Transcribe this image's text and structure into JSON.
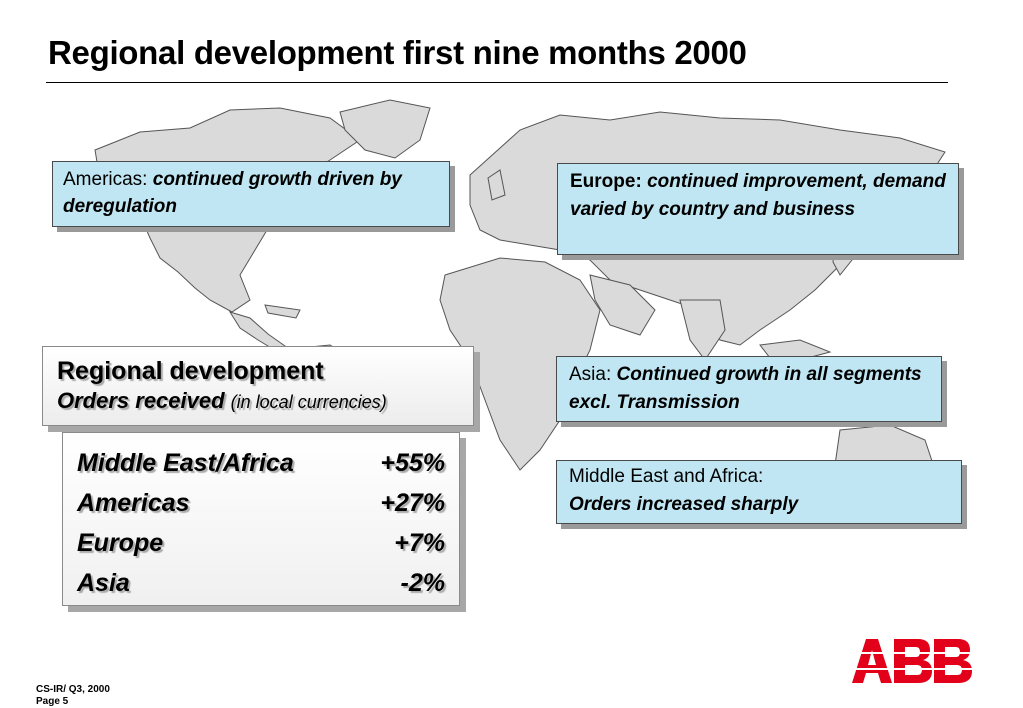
{
  "title": "Regional development first nine months 2000",
  "callouts": {
    "americas": {
      "lead": "Americas: ",
      "text": "continued growth driven by deregulation"
    },
    "europe": {
      "lead": "Europe: ",
      "text": "continued improvement, demand varied by country and business"
    },
    "asia": {
      "lead": "Asia: ",
      "text": "Continued growth in all segments excl. Transmission"
    },
    "mea": {
      "lead": "Middle East and Africa:",
      "text": "Orders increased sharply"
    }
  },
  "panel": {
    "heading": "Regional development",
    "subheading": "Orders received",
    "note": "(in local currencies)",
    "rows": [
      {
        "region": "Middle East/Africa",
        "value": "+55%"
      },
      {
        "region": "Americas",
        "value": "+27%"
      },
      {
        "region": "Europe",
        "value": "+7%"
      },
      {
        "region": "Asia",
        "value": "-2%"
      }
    ]
  },
  "footer": {
    "line1": "CS-IR/ Q3, 2000",
    "line2": "Page 5"
  },
  "logo": {
    "text": "ABB",
    "color": "#e3001b"
  },
  "colors": {
    "callout_bg": "#bfe6f2",
    "map_fill": "#dadada"
  }
}
